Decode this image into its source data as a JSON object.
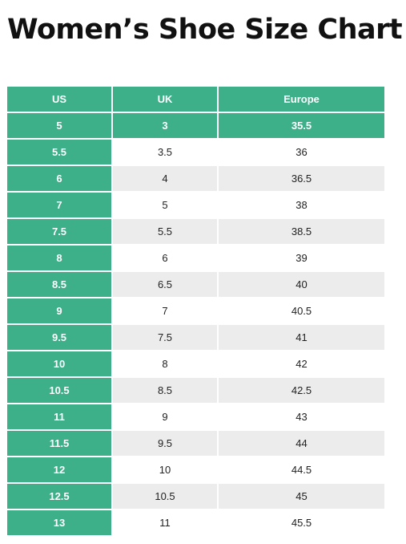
{
  "page": {
    "title": "Women’s Shoe Size Chart"
  },
  "table": {
    "headers": [
      "US",
      "UK",
      "Europe"
    ],
    "rows": [
      [
        "5",
        "3",
        "35.5"
      ],
      [
        "5.5",
        "3.5",
        "36"
      ],
      [
        "6",
        "4",
        "36.5"
      ],
      [
        "7",
        "5",
        "38"
      ],
      [
        "7.5",
        "5.5",
        "38.5"
      ],
      [
        "8",
        "6",
        "39"
      ],
      [
        "8.5",
        "6.5",
        "40"
      ],
      [
        "9",
        "7",
        "40.5"
      ],
      [
        "9.5",
        "7.5",
        "41"
      ],
      [
        "10",
        "8",
        "42"
      ],
      [
        "10.5",
        "8.5",
        "42.5"
      ],
      [
        "11",
        "9",
        "43"
      ],
      [
        "11.5",
        "9.5",
        "44"
      ],
      [
        "12",
        "10",
        "44.5"
      ],
      [
        "12.5",
        "10.5",
        "45"
      ],
      [
        "13",
        "11",
        "45.5"
      ]
    ]
  },
  "colors": {
    "accent": "#3daf89",
    "stripe": "#ececec",
    "header_text": "#ffffff",
    "title_text": "#111111"
  }
}
